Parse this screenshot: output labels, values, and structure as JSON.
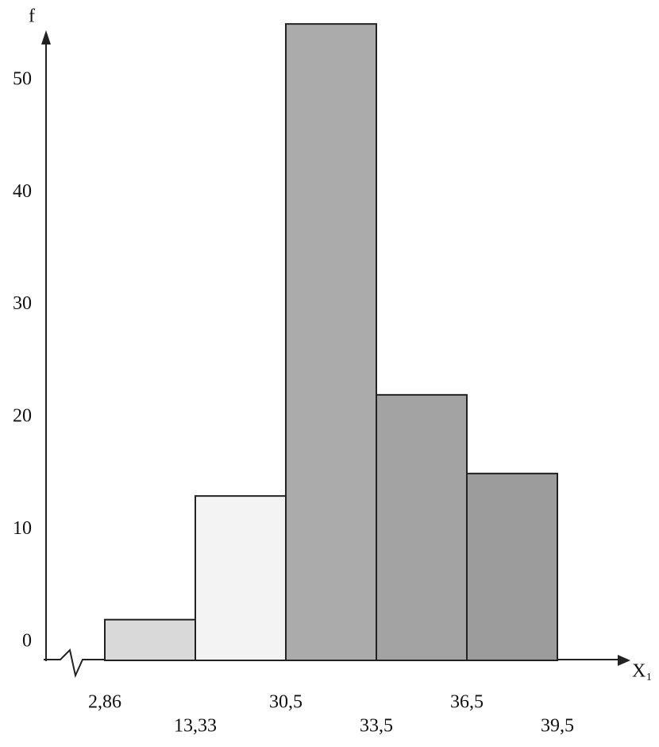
{
  "chart_data": {
    "type": "histogram",
    "y_label": "f",
    "x_label": "X₁",
    "bins": [
      {
        "value": 2.86,
        "label": "2,86"
      },
      {
        "value": 13.33,
        "label": "13,33"
      },
      {
        "value": 30.5,
        "label": "30,5"
      },
      {
        "value": 33.5,
        "label": "33,5"
      },
      {
        "value": 36.5,
        "label": "36,5"
      },
      {
        "value": 39.5,
        "label": "39,5"
      }
    ],
    "values": [
      2,
      13,
      55,
      22,
      15
    ],
    "colors": [
      "#d9d9d9",
      "#f3f3f3",
      "#ababab",
      "#a3a3a3",
      "#9c9c9c"
    ],
    "ylim": [
      0,
      56
    ],
    "yticks": [
      0,
      10,
      20,
      30,
      40,
      50
    ]
  }
}
